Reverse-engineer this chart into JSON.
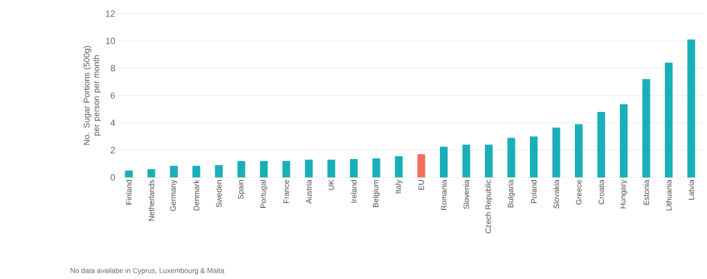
{
  "chart_data": {
    "type": "bar",
    "ylabel": "No. Sugar Portions (500g) per person per month",
    "categories": [
      "Finland",
      "Netherlands",
      "Germany",
      "Denmark",
      "Sweden",
      "Spain",
      "Portugal",
      "France",
      "Austria",
      "UK",
      "Ireland",
      "Belgium",
      "Italy",
      "EU",
      "Romania",
      "Slovenia",
      "Czech Republic",
      "Bulgaria",
      "Poland",
      "Slovakia",
      "Greece",
      "Croatia",
      "Hungary",
      "Estonia",
      "Lithuania",
      "Latvia"
    ],
    "values": [
      0.5,
      0.6,
      0.85,
      0.85,
      0.9,
      1.2,
      1.2,
      1.2,
      1.3,
      1.3,
      1.35,
      1.4,
      1.55,
      1.7,
      2.25,
      2.4,
      2.4,
      2.9,
      3.0,
      3.65,
      3.9,
      4.8,
      5.35,
      7.2,
      8.4,
      10.1
    ],
    "colors": [
      "#1aafb8",
      "#1aafb8",
      "#1aafb8",
      "#1aafb8",
      "#1aafb8",
      "#1aafb8",
      "#1aafb8",
      "#1aafb8",
      "#1aafb8",
      "#1aafb8",
      "#1aafb8",
      "#1aafb8",
      "#1aafb8",
      "#f07060",
      "#1aafb8",
      "#1aafb8",
      "#1aafb8",
      "#1aafb8",
      "#1aafb8",
      "#1aafb8",
      "#1aafb8",
      "#1aafb8",
      "#1aafb8",
      "#1aafb8",
      "#1aafb8",
      "#1aafb8"
    ],
    "ylim": [
      0,
      12
    ],
    "yticks": [
      0,
      2,
      4,
      6,
      8,
      10,
      12
    ],
    "grid": "y",
    "annotations": [
      "No data availabe in Cyprus, Luxembourg &  Malta"
    ]
  }
}
